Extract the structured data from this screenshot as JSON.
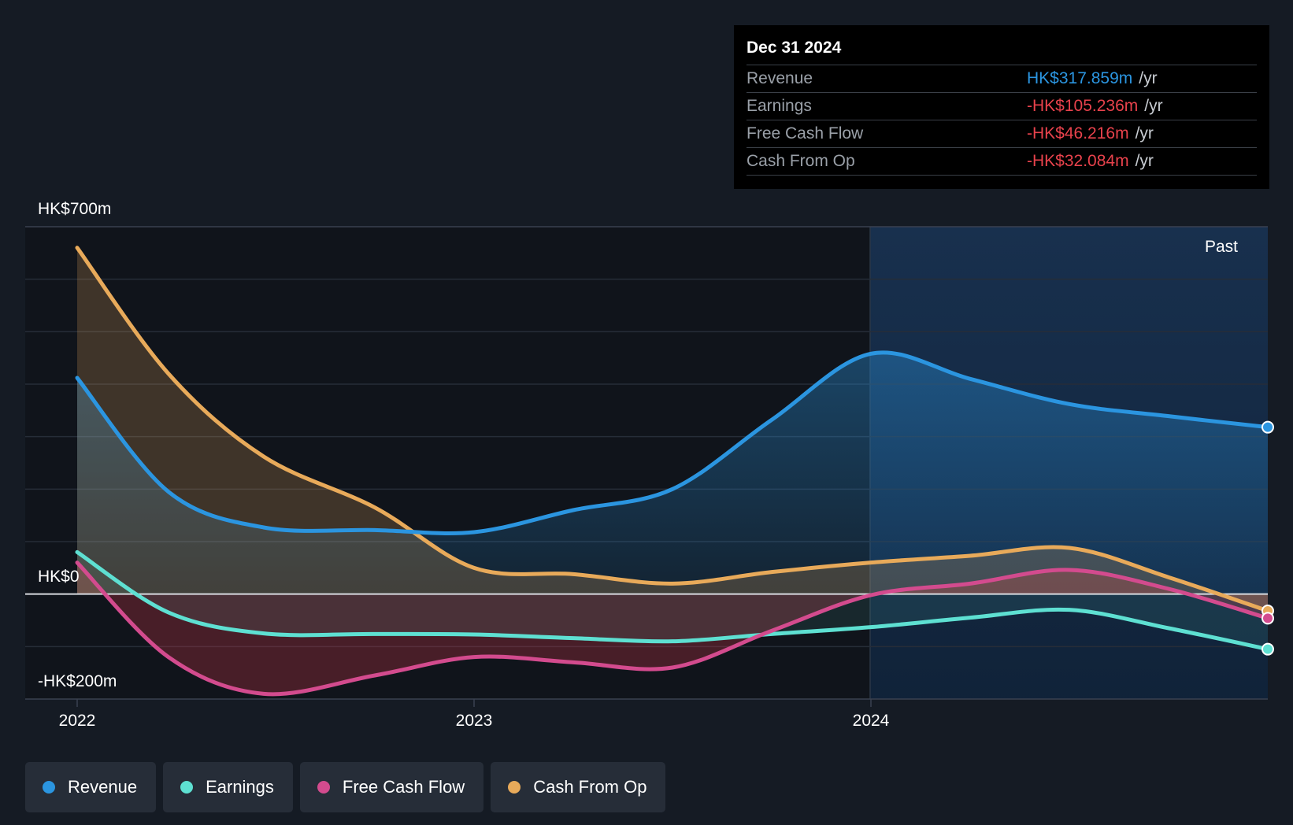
{
  "chart_data": {
    "type": "area",
    "x_label_ticks": [
      "2022",
      "2023",
      "2024"
    ],
    "y_labels": {
      "top": "HK$700m",
      "zero": "HK$0",
      "bottom": "-HK$200m"
    },
    "ylim": [
      -200,
      700
    ],
    "xlim": [
      2021.87,
      2025.0
    ],
    "past_label": "Past",
    "series": [
      {
        "name": "Revenue",
        "color": "#2b95e0",
        "points": [
          [
            2022.0,
            412
          ],
          [
            2022.23,
            195
          ],
          [
            2022.47,
            127
          ],
          [
            2022.75,
            122
          ],
          [
            2023.0,
            118
          ],
          [
            2023.25,
            160
          ],
          [
            2023.5,
            200
          ],
          [
            2023.75,
            332
          ],
          [
            2024.0,
            458
          ],
          [
            2024.25,
            410
          ],
          [
            2024.5,
            362
          ],
          [
            2024.75,
            339
          ],
          [
            2025.0,
            318
          ]
        ]
      },
      {
        "name": "Earnings",
        "color": "#5ee0d2",
        "points": [
          [
            2022.0,
            80
          ],
          [
            2022.23,
            -35
          ],
          [
            2022.47,
            -75
          ],
          [
            2022.75,
            -76
          ],
          [
            2023.0,
            -77
          ],
          [
            2023.25,
            -84
          ],
          [
            2023.5,
            -90
          ],
          [
            2023.75,
            -76
          ],
          [
            2024.0,
            -63
          ],
          [
            2024.25,
            -45
          ],
          [
            2024.5,
            -30
          ],
          [
            2024.75,
            -65
          ],
          [
            2025.0,
            -105
          ]
        ]
      },
      {
        "name": "Free Cash Flow",
        "color": "#d34b8e",
        "points": [
          [
            2022.0,
            60
          ],
          [
            2022.23,
            -120
          ],
          [
            2022.47,
            -190
          ],
          [
            2022.75,
            -155
          ],
          [
            2023.0,
            -120
          ],
          [
            2023.25,
            -130
          ],
          [
            2023.5,
            -140
          ],
          [
            2023.75,
            -70
          ],
          [
            2024.0,
            -2
          ],
          [
            2024.25,
            20
          ],
          [
            2024.5,
            46
          ],
          [
            2024.75,
            10
          ],
          [
            2025.0,
            -46
          ]
        ]
      },
      {
        "name": "Cash From Op",
        "color": "#e8aa5a",
        "points": [
          [
            2022.0,
            660
          ],
          [
            2022.23,
            420
          ],
          [
            2022.47,
            262
          ],
          [
            2022.75,
            165
          ],
          [
            2023.0,
            50
          ],
          [
            2023.25,
            38
          ],
          [
            2023.5,
            20
          ],
          [
            2023.75,
            42
          ],
          [
            2024.0,
            60
          ],
          [
            2024.25,
            73
          ],
          [
            2024.5,
            88
          ],
          [
            2024.75,
            32
          ],
          [
            2025.0,
            -32
          ]
        ]
      }
    ],
    "tooltip": {
      "date": "Dec 31 2024",
      "rows": [
        {
          "label": "Revenue",
          "value": "HK$317.859m",
          "unit": "/yr",
          "color": "#2b95e0"
        },
        {
          "label": "Earnings",
          "value": "-HK$105.236m",
          "unit": "/yr",
          "color": "#e8424c"
        },
        {
          "label": "Free Cash Flow",
          "value": "-HK$46.216m",
          "unit": "/yr",
          "color": "#e8424c"
        },
        {
          "label": "Cash From Op",
          "value": "-HK$32.084m",
          "unit": "/yr",
          "color": "#e8424c"
        }
      ]
    },
    "legend": [
      {
        "label": "Revenue",
        "color": "#2b95e0"
      },
      {
        "label": "Earnings",
        "color": "#5ee0d2"
      },
      {
        "label": "Free Cash Flow",
        "color": "#d34b8e"
      },
      {
        "label": "Cash From Op",
        "color": "#e8aa5a"
      }
    ]
  }
}
